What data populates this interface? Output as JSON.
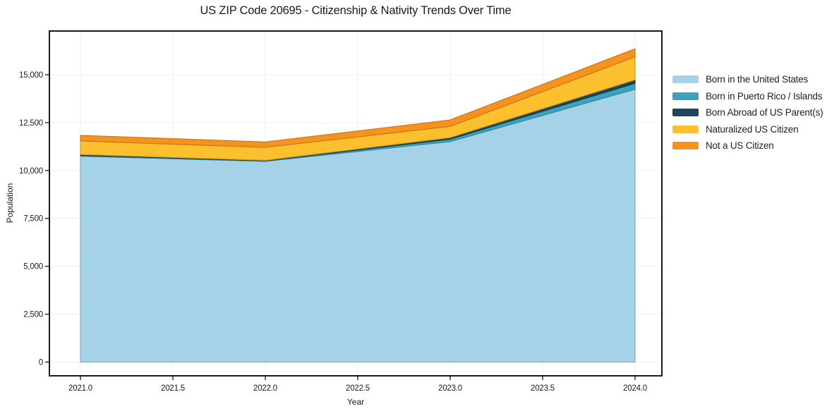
{
  "title": "US ZIP Code 20695 - Citizenship & Nativity Trends Over Time",
  "chart_data": {
    "type": "area",
    "stacked": true,
    "title": "US ZIP Code 20695 - Citizenship & Nativity Trends Over Time",
    "xlabel": "Year",
    "ylabel": "Population",
    "x": [
      2021,
      2022,
      2023,
      2024
    ],
    "series": [
      {
        "name": "Born in the United States",
        "color": "#a5d2e7",
        "values": [
          10750,
          10480,
          11510,
          14240
        ]
      },
      {
        "name": "Born in Puerto Rico / Islands",
        "color": "#3aa3bf",
        "values": [
          40,
          25,
          125,
          310
        ]
      },
      {
        "name": "Born Abroad of US Parent(s)",
        "color": "#1f4558",
        "values": [
          45,
          25,
          85,
          185
        ]
      },
      {
        "name": "Naturalized US Citizen",
        "color": "#fcbf2d",
        "values": [
          710,
          680,
          580,
          1200
        ]
      },
      {
        "name": "Not a US Citizen",
        "color": "#f6931f",
        "values": [
          290,
          280,
          340,
          420
        ]
      }
    ],
    "totals": [
      11835,
      11490,
      12640,
      16355
    ],
    "xticks": [
      2021.0,
      2021.5,
      2022.0,
      2022.5,
      2023.0,
      2023.5,
      2024.0
    ],
    "xtick_labels": [
      "2021.0",
      "2021.5",
      "2022.0",
      "2022.5",
      "2023.0",
      "2023.5",
      "2024.0"
    ],
    "yticks": [
      0,
      2500,
      5000,
      7500,
      10000,
      12500,
      15000
    ],
    "ytick_labels": [
      "0",
      "2,500",
      "5,000",
      "7,500",
      "10,000",
      "12,500",
      "15,000"
    ],
    "xlim": [
      2020.832,
      2024.145
    ],
    "ylim": [
      -718,
      17282
    ],
    "grid": true,
    "grid_color": "#efefef",
    "frame_color": "#000000",
    "legend_position": "right"
  }
}
